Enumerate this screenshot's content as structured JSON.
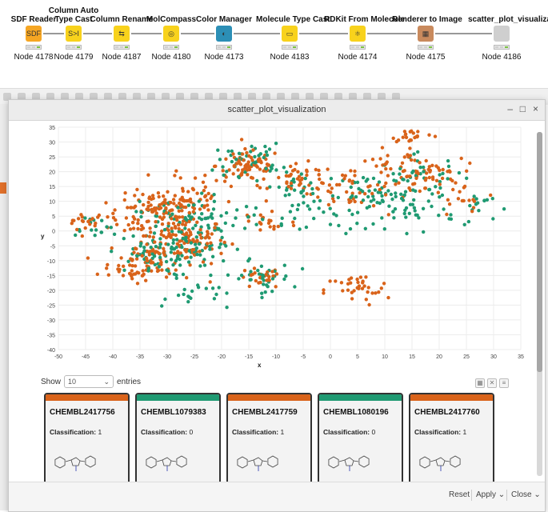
{
  "workflow": {
    "nodes": [
      {
        "title": "SDF Reader",
        "label": "Node 4178",
        "color": "#f6a623",
        "glyph": "SDF"
      },
      {
        "title": "Column Auto\nType Cast",
        "label": "Node 4179",
        "color": "#f8d21c",
        "glyph": "S>I"
      },
      {
        "title": "Column Rename",
        "label": "Node 4187",
        "color": "#f8d21c",
        "glyph": "⇆"
      },
      {
        "title": "MolCompass",
        "label": "Node 4180",
        "color": "#f8d21c",
        "glyph": "◎"
      },
      {
        "title": "Color Manager",
        "label": "Node 4173",
        "color": "#2c8fb6",
        "glyph": "◐"
      },
      {
        "title": "Molecule Type Cast",
        "label": "Node 4183",
        "color": "#f8d21c",
        "glyph": "▭"
      },
      {
        "title": "RDKit From Molecule",
        "label": "Node 4174",
        "color": "#f8d21c",
        "glyph": "⚛"
      },
      {
        "title": "Renderer to Image",
        "label": "Node 4175",
        "color": "#c98a5d",
        "glyph": "▦"
      },
      {
        "title": "scatter_plot_visualization",
        "label": "Node 4186",
        "color": "#cfcfcf",
        "glyph": ""
      }
    ]
  },
  "window": {
    "title": "scatter_plot_visualization",
    "minimize": "–",
    "maximize": "□",
    "close": "×"
  },
  "chart_data": {
    "type": "scatter",
    "xlabel": "x",
    "ylabel": "y",
    "xlim": [
      -50,
      35
    ],
    "ylim": [
      -40,
      35
    ],
    "xticks": [
      -50,
      -45,
      -40,
      -35,
      -30,
      -25,
      -20,
      -15,
      -10,
      -5,
      0,
      5,
      10,
      15,
      20,
      25,
      30,
      35
    ],
    "yticks": [
      35,
      30,
      25,
      20,
      15,
      10,
      5,
      0,
      -5,
      -10,
      -15,
      -20,
      -25,
      -30,
      -35,
      -40
    ],
    "grid": true,
    "series": [
      {
        "class": 1,
        "color": "#d9631a",
        "clusters": [
          [
            -45,
            3,
            2,
            20
          ],
          [
            -33,
            5,
            4,
            80
          ],
          [
            -27,
            -3,
            4,
            90
          ],
          [
            -33,
            -10,
            4,
            70
          ],
          [
            -28,
            8,
            3,
            60
          ],
          [
            -15,
            22,
            3,
            70
          ],
          [
            -13,
            -16,
            2,
            25
          ],
          [
            -5,
            17,
            3,
            40
          ],
          [
            4,
            15,
            4,
            40
          ],
          [
            13,
            20,
            4,
            45
          ],
          [
            18,
            19,
            3,
            35
          ],
          [
            5,
            -20,
            3,
            35
          ],
          [
            -12,
            3,
            3,
            20
          ],
          [
            15,
            33,
            2,
            30
          ],
          [
            25,
            10,
            3,
            15
          ],
          [
            -37,
            -15,
            2,
            15
          ],
          [
            -23,
            15,
            4,
            30
          ]
        ]
      },
      {
        "class": 0,
        "color": "#1f9a72",
        "clusters": [
          [
            -44,
            2,
            2,
            15
          ],
          [
            -33,
            -8,
            4,
            70
          ],
          [
            -27,
            5,
            4,
            60
          ],
          [
            -24,
            -6,
            4,
            45
          ],
          [
            -15,
            24,
            3,
            45
          ],
          [
            -13,
            -16,
            3,
            35
          ],
          [
            -6,
            15,
            3,
            25
          ],
          [
            7,
            12,
            4,
            45
          ],
          [
            15,
            7,
            4,
            40
          ],
          [
            17,
            18,
            4,
            40
          ],
          [
            28,
            8,
            3,
            15
          ],
          [
            -20,
            3,
            4,
            25
          ],
          [
            -25,
            -22,
            3,
            20
          ],
          [
            -3,
            5,
            4,
            20
          ]
        ]
      }
    ]
  },
  "table": {
    "show_label": "Show",
    "entries_value": "10",
    "entries_label": "entries",
    "cards": [
      {
        "id": "CHEMBL2417756",
        "classification_label": "Classification:",
        "classification": "1",
        "bar_color": "#d9631a"
      },
      {
        "id": "CHEMBL1079383",
        "classification_label": "Classification:",
        "classification": "0",
        "bar_color": "#1f9a72"
      },
      {
        "id": "CHEMBL2417759",
        "classification_label": "Classification:",
        "classification": "1",
        "bar_color": "#d9631a"
      },
      {
        "id": "CHEMBL1080196",
        "classification_label": "Classification:",
        "classification": "0",
        "bar_color": "#1f9a72"
      },
      {
        "id": "CHEMBL2417760",
        "classification_label": "Classification:",
        "classification": "1",
        "bar_color": "#d9631a"
      }
    ]
  },
  "footer": {
    "reset": "Reset",
    "apply": "Apply",
    "close": "Close"
  }
}
